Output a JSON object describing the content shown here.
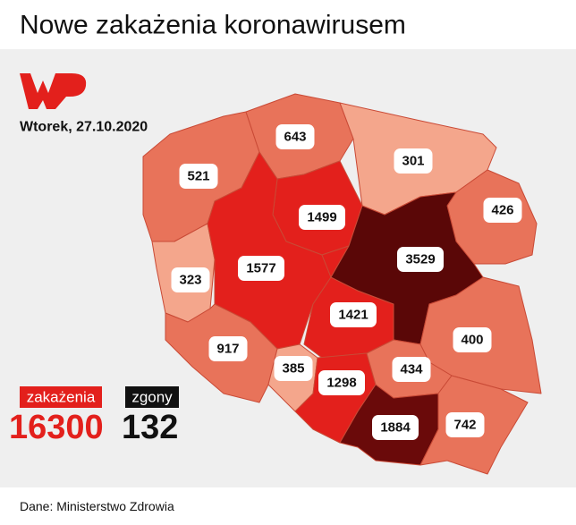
{
  "header": {
    "title": "Nowe zakażenia koronawirusem"
  },
  "date": "Wtorek, 27.10.2020",
  "regions": [
    {
      "value": 521,
      "color": "#e8735a"
    },
    {
      "value": 643,
      "color": "#e8735a"
    },
    {
      "value": 301,
      "color": "#f4a68c"
    },
    {
      "value": 426,
      "color": "#e8735a"
    },
    {
      "value": 1499,
      "color": "#e3201c"
    },
    {
      "value": 323,
      "color": "#f4a68c"
    },
    {
      "value": 1577,
      "color": "#e3201c"
    },
    {
      "value": 1421,
      "color": "#e3201c"
    },
    {
      "value": 3529,
      "color": "#5a0707"
    },
    {
      "value": 400,
      "color": "#e8735a"
    },
    {
      "value": 917,
      "color": "#e8735a"
    },
    {
      "value": 385,
      "color": "#f4a68c"
    },
    {
      "value": 1298,
      "color": "#e3201c"
    },
    {
      "value": 434,
      "color": "#e8735a"
    },
    {
      "value": 1884,
      "color": "#6a0a0a"
    },
    {
      "value": 742,
      "color": "#e8735a"
    }
  ],
  "totals": {
    "infections_label": "zakażenia",
    "infections": 16300,
    "deaths_label": "zgony",
    "deaths": 132
  },
  "footer": {
    "source": "Dane: Ministerstwo Zdrowia"
  }
}
